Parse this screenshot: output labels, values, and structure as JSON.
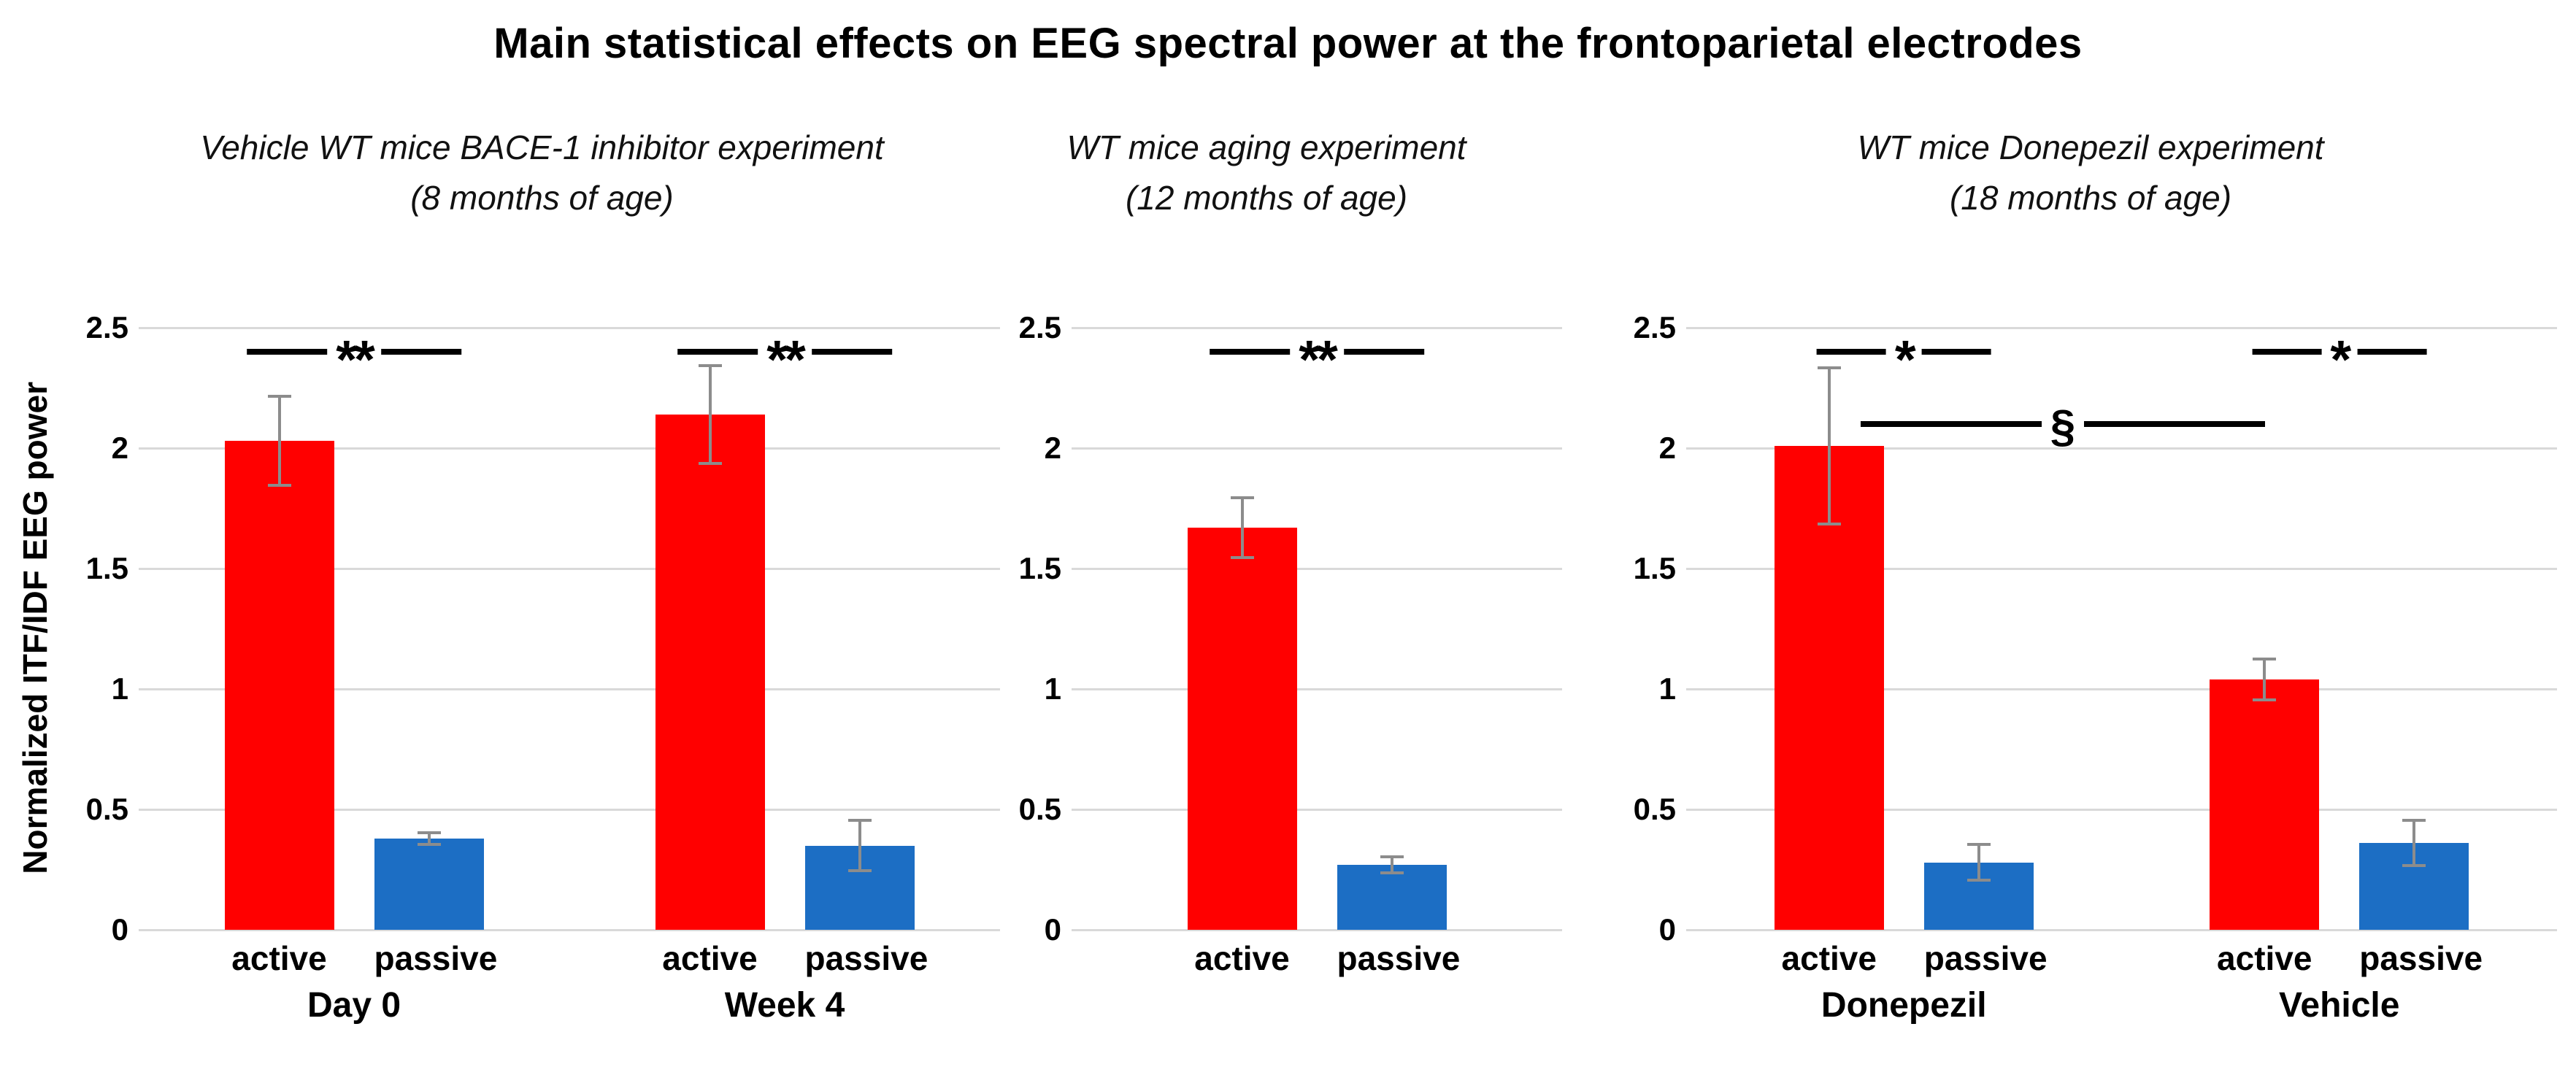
{
  "chart_data": {
    "type": "bar",
    "title": "Main statistical effects on EEG spectral power at the frontoparietal electrodes",
    "ylabel": "Normalized ITF/IDF EEG power",
    "xlabel": "",
    "ylim": [
      0,
      2.5
    ],
    "yticks": [
      "0",
      "0.5",
      "1",
      "1.5",
      "2",
      "2.5"
    ],
    "grid": true,
    "legend": false,
    "bar_conditions": [
      "active",
      "passive"
    ],
    "colors": {
      "active": "#FF0000",
      "passive": "#1C6EC4"
    },
    "error_bar_color": "#8C8C8C",
    "gridline_color": "#D9D9D9",
    "panels": [
      {
        "subtitle": [
          "Vehicle WT mice BACE-1 inhibitor experiment",
          "(8 months of age)"
        ],
        "groups": [
          {
            "label": "Day 0",
            "bars": [
              {
                "condition": "active",
                "value": 2.03,
                "error": 0.19
              },
              {
                "condition": "passive",
                "value": 0.38,
                "error": 0.03
              }
            ],
            "sig": {
              "symbol": "**",
              "height": 2.4
            }
          },
          {
            "label": "Week 4",
            "bars": [
              {
                "condition": "active",
                "value": 2.14,
                "error": 0.21
              },
              {
                "condition": "passive",
                "value": 0.35,
                "error": 0.11
              }
            ],
            "sig": {
              "symbol": "**",
              "height": 2.4
            }
          }
        ]
      },
      {
        "subtitle": [
          "WT mice aging experiment",
          "(12 months of age)"
        ],
        "groups": [
          {
            "label": "",
            "bars": [
              {
                "condition": "active",
                "value": 1.67,
                "error": 0.13
              },
              {
                "condition": "passive",
                "value": 0.27,
                "error": 0.04
              }
            ],
            "sig": {
              "symbol": "**",
              "height": 2.4
            }
          }
        ]
      },
      {
        "subtitle": [
          "WT mice Donepezil experiment",
          "(18 months of age)"
        ],
        "groups": [
          {
            "label": "Donepezil",
            "bars": [
              {
                "condition": "active",
                "value": 2.01,
                "error": 0.33
              },
              {
                "condition": "passive",
                "value": 0.28,
                "error": 0.08
              }
            ],
            "sig": {
              "symbol": "*",
              "height": 2.4
            }
          },
          {
            "label": "Vehicle",
            "bars": [
              {
                "condition": "active",
                "value": 1.04,
                "error": 0.09
              },
              {
                "condition": "passive",
                "value": 0.36,
                "error": 0.1
              }
            ],
            "sig": {
              "symbol": "*",
              "height": 2.4
            }
          }
        ],
        "cross_group_sig": {
          "symbol": "§",
          "height": 2.1,
          "from": "Donepezil active",
          "to": "Vehicle active"
        }
      }
    ]
  }
}
